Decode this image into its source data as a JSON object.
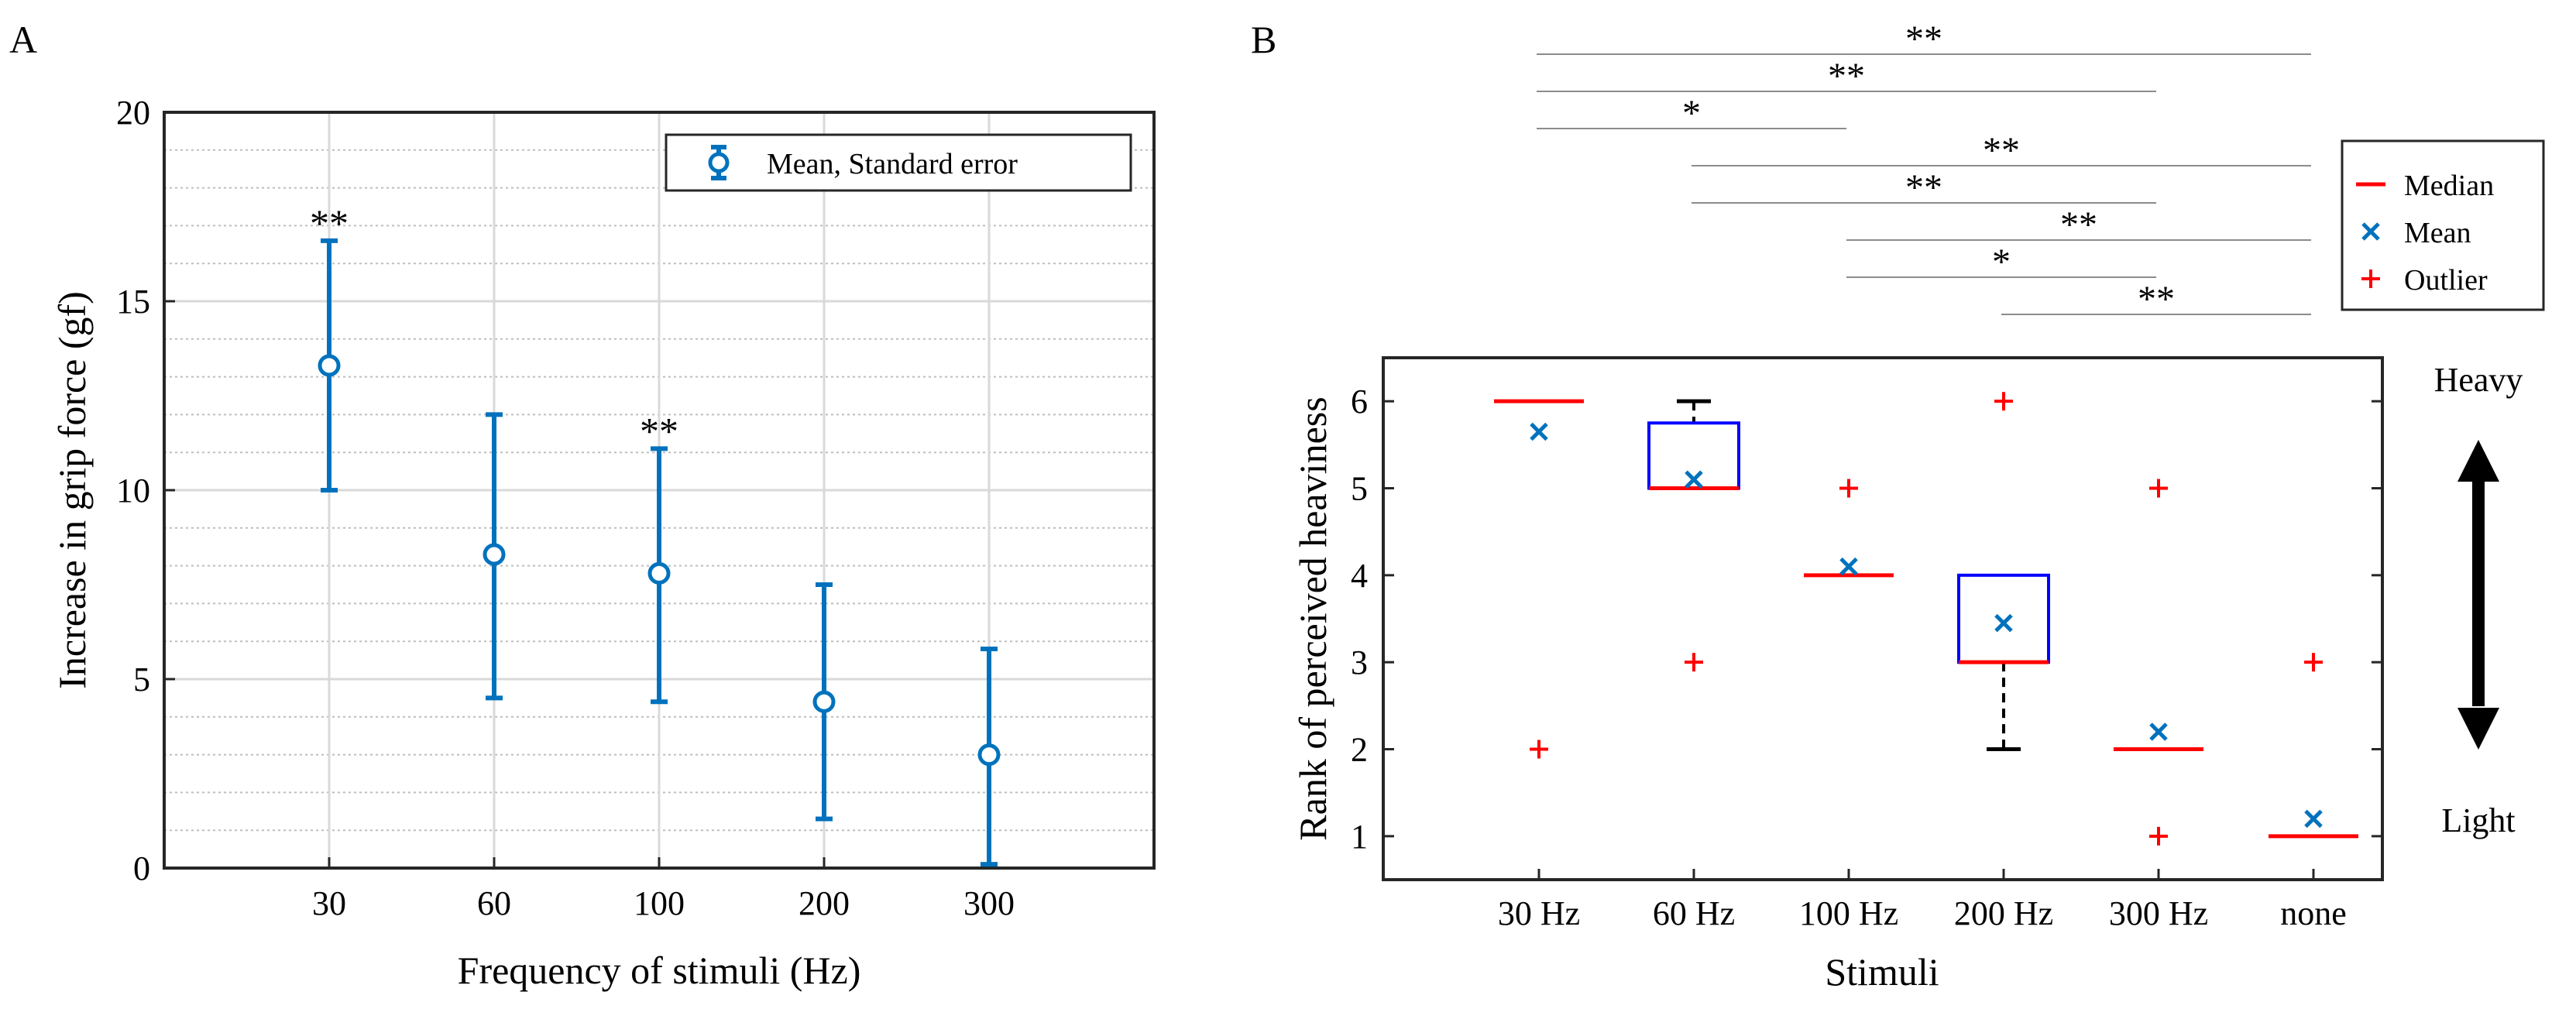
{
  "panel_a": {
    "label": "A",
    "legend": "Mean, Standard error"
  },
  "panel_b": {
    "label": "B",
    "side_labels": {
      "heavy": "Heavy",
      "light": "Light"
    },
    "legend": {
      "median": "Median",
      "mean": "Mean",
      "outlier": "Outlier"
    },
    "significance": [
      {
        "from": 0,
        "to": 5,
        "mark": "**"
      },
      {
        "from": 0,
        "to": 4,
        "mark": "**"
      },
      {
        "from": 0,
        "to": 2,
        "mark": "*"
      },
      {
        "from": 1,
        "to": 5,
        "mark": "**"
      },
      {
        "from": 1,
        "to": 4,
        "mark": "**"
      },
      {
        "from": 2,
        "to": 5,
        "mark": "**"
      },
      {
        "from": 2,
        "to": 4,
        "mark": "*"
      },
      {
        "from": 3,
        "to": 5,
        "mark": "**"
      }
    ]
  },
  "colors": {
    "blue": "#0072BD",
    "red": "#FF0000",
    "box_blue": "#0000FF",
    "grid": "#D9D9D9",
    "sig_line": "#8C8C8C"
  },
  "chart_data": [
    {
      "type": "errorbar",
      "title": "",
      "xlabel": "Frequency of stimuli (Hz)",
      "ylabel": "Increase in grip force (gf)",
      "categories": [
        "30",
        "60",
        "100",
        "200",
        "300"
      ],
      "ylim": [
        0,
        20
      ],
      "yticks": [
        0,
        5,
        10,
        15,
        20
      ],
      "grid": true,
      "legend": "top-right",
      "series": [
        {
          "name": "Mean, Standard error",
          "values": [
            13.3,
            8.3,
            7.8,
            4.4,
            3.0
          ],
          "lower": [
            10.0,
            4.5,
            4.4,
            1.3,
            0.1
          ],
          "upper": [
            16.6,
            12.0,
            11.1,
            7.5,
            5.8
          ]
        }
      ],
      "annotations": [
        {
          "category": "30",
          "text": "**"
        },
        {
          "category": "100",
          "text": "**"
        }
      ]
    },
    {
      "type": "box",
      "title": "",
      "xlabel": "Stimuli",
      "ylabel": "Rank of perceived heaviness",
      "categories": [
        "30 Hz",
        "60 Hz",
        "100 Hz",
        "200 Hz",
        "300 Hz",
        "none"
      ],
      "ylim": [
        0.5,
        6.5
      ],
      "yticks": [
        1,
        2,
        3,
        4,
        5,
        6
      ],
      "grid": false,
      "legend": "top-right",
      "boxes": [
        {
          "q1": 6,
          "median": 6,
          "q3": 6,
          "whisker_low": 6,
          "whisker_high": 6,
          "mean": 5.65,
          "outliers": [
            2
          ]
        },
        {
          "q1": 5,
          "median": 5,
          "q3": 5.75,
          "whisker_low": 5,
          "whisker_high": 6,
          "mean": 5.1,
          "outliers": [
            3
          ]
        },
        {
          "q1": 4,
          "median": 4,
          "q3": 4,
          "whisker_low": 4,
          "whisker_high": 4,
          "mean": 4.1,
          "outliers": [
            5
          ]
        },
        {
          "q1": 3,
          "median": 3,
          "q3": 4,
          "whisker_low": 2,
          "whisker_high": 4,
          "mean": 3.45,
          "outliers": [
            6
          ]
        },
        {
          "q1": 2,
          "median": 2,
          "q3": 2,
          "whisker_low": 2,
          "whisker_high": 2,
          "mean": 2.2,
          "outliers": [
            1,
            5
          ]
        },
        {
          "q1": 1,
          "median": 1,
          "q3": 1,
          "whisker_low": 1,
          "whisker_high": 1,
          "mean": 1.2,
          "outliers": [
            3
          ]
        }
      ]
    }
  ]
}
